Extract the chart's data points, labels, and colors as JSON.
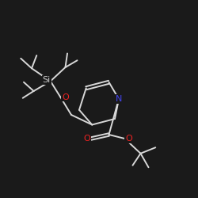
{
  "bg_color": "#1a1a1a",
  "bond_color": "#d8d8d8",
  "N_color": "#4444ee",
  "O_color": "#ee2222",
  "Si_color": "#cccccc",
  "lw": 1.4,
  "figsize": [
    2.5,
    2.5
  ],
  "dpi": 100,
  "xlim": [
    0,
    10
  ],
  "ylim": [
    0,
    10
  ]
}
